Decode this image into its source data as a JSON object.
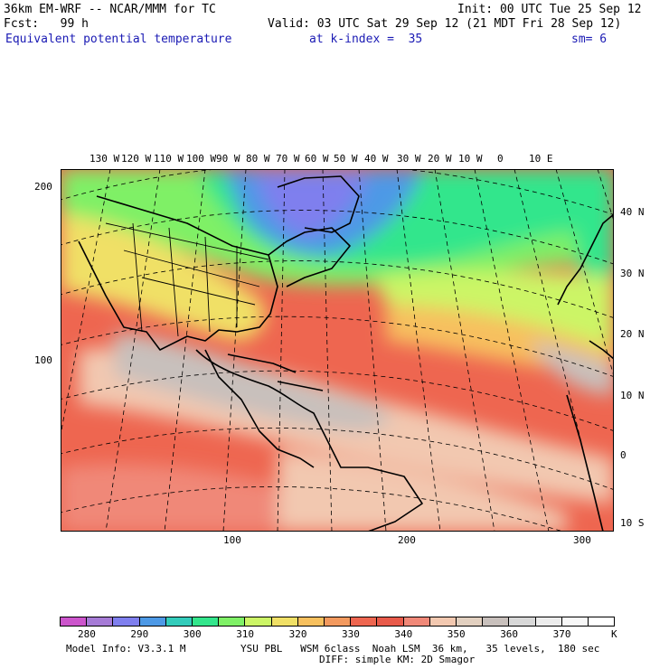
{
  "header": {
    "line1_left": "36km EM-WRF -- NCAR/MMM for TC",
    "line1_right": "Init: 00 UTC Tue 25 Sep 12",
    "line2_left": "Fcst:   99 h",
    "line2_right": "Valid: 03 UTC Sat 29 Sep 12 (21 MDT Fri 28 Sep 12)",
    "line3_field": "Equivalent potential temperature",
    "line3_level": "at k-index =  35",
    "line3_sm": "sm= 6"
  },
  "axes": {
    "longitudes": [
      "130 W",
      "120 W",
      "110 W",
      "100 W",
      "90 W",
      "80 W",
      "70 W",
      "60 W",
      "50 W",
      "40 W",
      "30 W",
      "20 W",
      "10 W",
      "0",
      "10 E"
    ],
    "latitudes": [
      "40 N",
      "30 N",
      "20 N",
      "10 N",
      "0",
      "10 S"
    ],
    "left_ticks": [
      "200",
      "100"
    ],
    "bottom_ticks": [
      "100",
      "200",
      "300"
    ]
  },
  "colorbar": {
    "labels": [
      "280",
      "290",
      "300",
      "310",
      "320",
      "330",
      "340",
      "350",
      "360",
      "370"
    ],
    "unit": "K",
    "colors": [
      "#cc55cc",
      "#a67bd6",
      "#7f7fee",
      "#4d99e6",
      "#33ccbb",
      "#33e68c",
      "#7ff066",
      "#ccf566",
      "#f0e066",
      "#f7c05e",
      "#f2995e",
      "#ee6650",
      "#e85a4a",
      "#f08878",
      "#f2c8b0",
      "#e2d0c0",
      "#c8c0bc",
      "#d8d8d8",
      "#ececec",
      "#f8f8f8",
      "#ffffff"
    ]
  },
  "footer": {
    "model_info": "Model Info: V3.3.1 M",
    "physics_line1": "YSU PBL   WSM 6class  Noah LSM  36 km,   35 levels,  180 sec",
    "physics_line2": "DIFF: simple KM: 2D Smagor"
  }
}
